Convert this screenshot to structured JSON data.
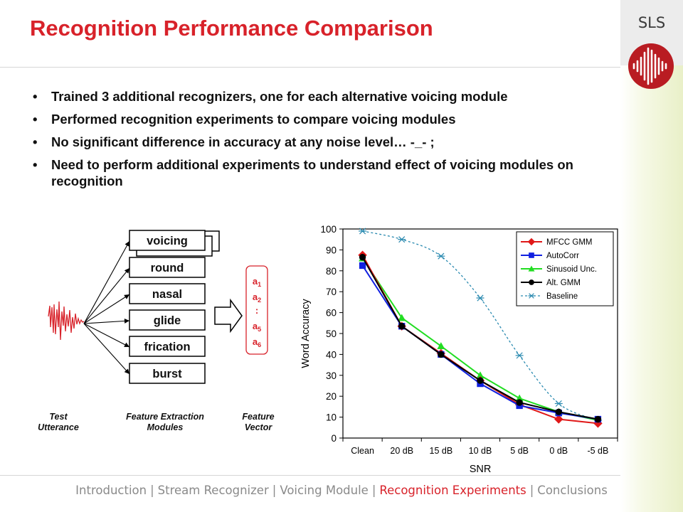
{
  "header": {
    "title": "Recognition Performance Comparison",
    "badge": "SLS"
  },
  "bullets": [
    "Trained 3 additional recognizers, one for each alternative voicing module",
    "Performed recognition experiments to compare voicing modules",
    "No significant difference in accuracy at any noise level…  -_- ;",
    "Need to perform additional experiments to understand effect of voicing modules on recognition"
  ],
  "diagram": {
    "modules": [
      "voicing",
      "round",
      "nasal",
      "glide",
      "frication",
      "burst"
    ],
    "vector": [
      "a1",
      "a2",
      ":",
      "a5",
      "a6"
    ],
    "labels": {
      "test": "Test Utterance",
      "modules": "Feature Extraction Modules",
      "vector": "Feature Vector"
    },
    "colors": {
      "vector": "#d8222a",
      "waveform": "#d8222a"
    }
  },
  "chart_data": {
    "type": "line",
    "categories": [
      "Clean",
      "20 dB",
      "15 dB",
      "10 dB",
      "5 dB",
      "0 dB",
      "-5 dB"
    ],
    "xlabel": "SNR",
    "ylabel": "Word Accuracy",
    "ylim": [
      0,
      100
    ],
    "yticks": [
      0,
      10,
      20,
      30,
      40,
      50,
      60,
      70,
      80,
      90,
      100
    ],
    "grid": false,
    "legend": "top-right",
    "series": [
      {
        "name": "MFCC GMM",
        "color": "#e01818",
        "marker": "diamond",
        "dash": false,
        "values": [
          87.5,
          53.5,
          40.5,
          27.5,
          16,
          9,
          7
        ]
      },
      {
        "name": "AutoCorr",
        "color": "#1020e0",
        "marker": "square",
        "dash": false,
        "values": [
          82.5,
          53.5,
          40,
          26,
          15.5,
          12,
          9
        ]
      },
      {
        "name": "Sinusoid Unc.",
        "color": "#22dd22",
        "marker": "triangle",
        "dash": false,
        "values": [
          86,
          57.5,
          44,
          30,
          19,
          12.5,
          8.5
        ]
      },
      {
        "name": "Alt. GMM",
        "color": "#000000",
        "marker": "circle",
        "dash": false,
        "values": [
          86.5,
          53.5,
          40,
          27.5,
          17,
          12.5,
          9
        ]
      },
      {
        "name": "Baseline",
        "color": "#2a8ab0",
        "marker": "star",
        "dash": true,
        "values": [
          99,
          95,
          87,
          67,
          39.5,
          16.5,
          8.5
        ]
      }
    ]
  },
  "footer": {
    "items": [
      "Introduction",
      "Stream Recognizer",
      "Voicing Module",
      "Recognition Experiments",
      "Conclusions"
    ],
    "separator": "|",
    "active": 3,
    "active_color": "#d8222a"
  }
}
